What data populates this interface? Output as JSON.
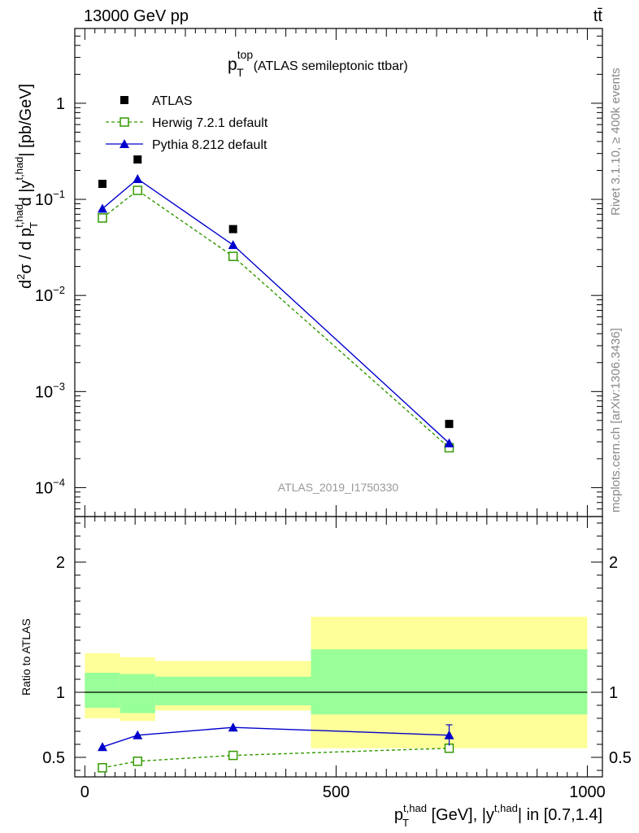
{
  "header": {
    "energy": "13000 GeV pp",
    "process": "tt̄"
  },
  "side": {
    "rivet": "Rivet 3.1.10, ≥ 400k events",
    "mcplots": "mcplots.cern.ch [arXiv:1306.3436]"
  },
  "chart_data": [
    {
      "type": "line",
      "title": "(ATLAS semileptonic ttbar)",
      "title_var": "p",
      "title_sup": "top",
      "title_sub": "T",
      "watermark": "ATLAS_2019_I1750330",
      "ylabel": "d²σ / d p_T^{t,had} d |y^{t,had}| [pb/GeV]",
      "yscale": "log",
      "ylim": [
        5e-05,
        6
      ],
      "y_ticks": [
        {
          "value": 1,
          "label": "1"
        },
        {
          "value": 0.1,
          "label": "10",
          "exp": "−1"
        },
        {
          "value": 0.01,
          "label": "10",
          "exp": "−2"
        },
        {
          "value": 0.001,
          "label": "10",
          "exp": "−3"
        },
        {
          "value": 0.0001,
          "label": "10",
          "exp": "−4"
        }
      ],
      "xlim": [
        -20,
        1030
      ],
      "legend": {
        "position": "top-left",
        "entries": [
          "ATLAS",
          "Herwig 7.2.1 default",
          "Pythia 8.212 default"
        ]
      },
      "series": [
        {
          "name": "ATLAS",
          "color": "#000000",
          "marker": "square",
          "x": [
            35,
            105,
            295,
            725
          ],
          "y": [
            0.145,
            0.26,
            0.049,
            0.00046
          ]
        },
        {
          "name": "Herwig 7.2.1 default",
          "color": "#339900",
          "marker": "open-square",
          "dash": true,
          "x": [
            35,
            105,
            295,
            725
          ],
          "y": [
            0.064,
            0.124,
            0.0255,
            0.00026
          ]
        },
        {
          "name": "Pythia 8.212 default",
          "color": "#0000cc",
          "marker": "triangle",
          "x": [
            35,
            105,
            295,
            725
          ],
          "y": [
            0.08,
            0.163,
            0.0335,
            0.00029
          ]
        }
      ]
    },
    {
      "type": "line",
      "ylabel": "Ratio to ATLAS",
      "ylim": [
        0.35,
        2.35
      ],
      "xlim": [
        -20,
        1030
      ],
      "y_ticks": [
        {
          "value": 2,
          "label": "2"
        },
        {
          "value": 1,
          "label": "1"
        },
        {
          "value": 0.5,
          "label": "0.5"
        }
      ],
      "x_ticks": [
        {
          "value": 0,
          "label": "0"
        },
        {
          "value": 500,
          "label": "500"
        },
        {
          "value": 1000,
          "label": "1000"
        }
      ],
      "xlabel": {
        "p": "p",
        "sub": "T",
        "sup1": "t,had",
        "mid": " [GeV], |y",
        "sup2": "t,had",
        "end": "| in [0.7,1.4]"
      },
      "bands": [
        {
          "x0": 0,
          "x1": 70,
          "stat": [
            0.88,
            1.15
          ],
          "total": [
            0.8,
            1.3
          ]
        },
        {
          "x0": 70,
          "x1": 140,
          "stat": [
            0.84,
            1.14
          ],
          "total": [
            0.78,
            1.27
          ]
        },
        {
          "x0": 140,
          "x1": 450,
          "stat": [
            0.9,
            1.12
          ],
          "total": [
            0.86,
            1.24
          ]
        },
        {
          "x0": 450,
          "x1": 1000,
          "stat": [
            0.83,
            1.33
          ],
          "total": [
            0.57,
            1.58
          ]
        }
      ],
      "band_colors": {
        "stat": "#99ff99",
        "total": "#ffff99"
      },
      "series": [
        {
          "name": "Herwig 7.2.1 default",
          "color": "#339900",
          "marker": "open-square",
          "dash": true,
          "x": [
            35,
            105,
            295,
            725
          ],
          "y": [
            0.42,
            0.47,
            0.515,
            0.57
          ]
        },
        {
          "name": "Pythia 8.212 default",
          "color": "#0000cc",
          "marker": "triangle",
          "x": [
            35,
            105,
            295,
            725
          ],
          "y": [
            0.58,
            0.67,
            0.73,
            0.67
          ],
          "err": [
            0,
            0,
            0,
            0.08
          ]
        }
      ]
    }
  ]
}
